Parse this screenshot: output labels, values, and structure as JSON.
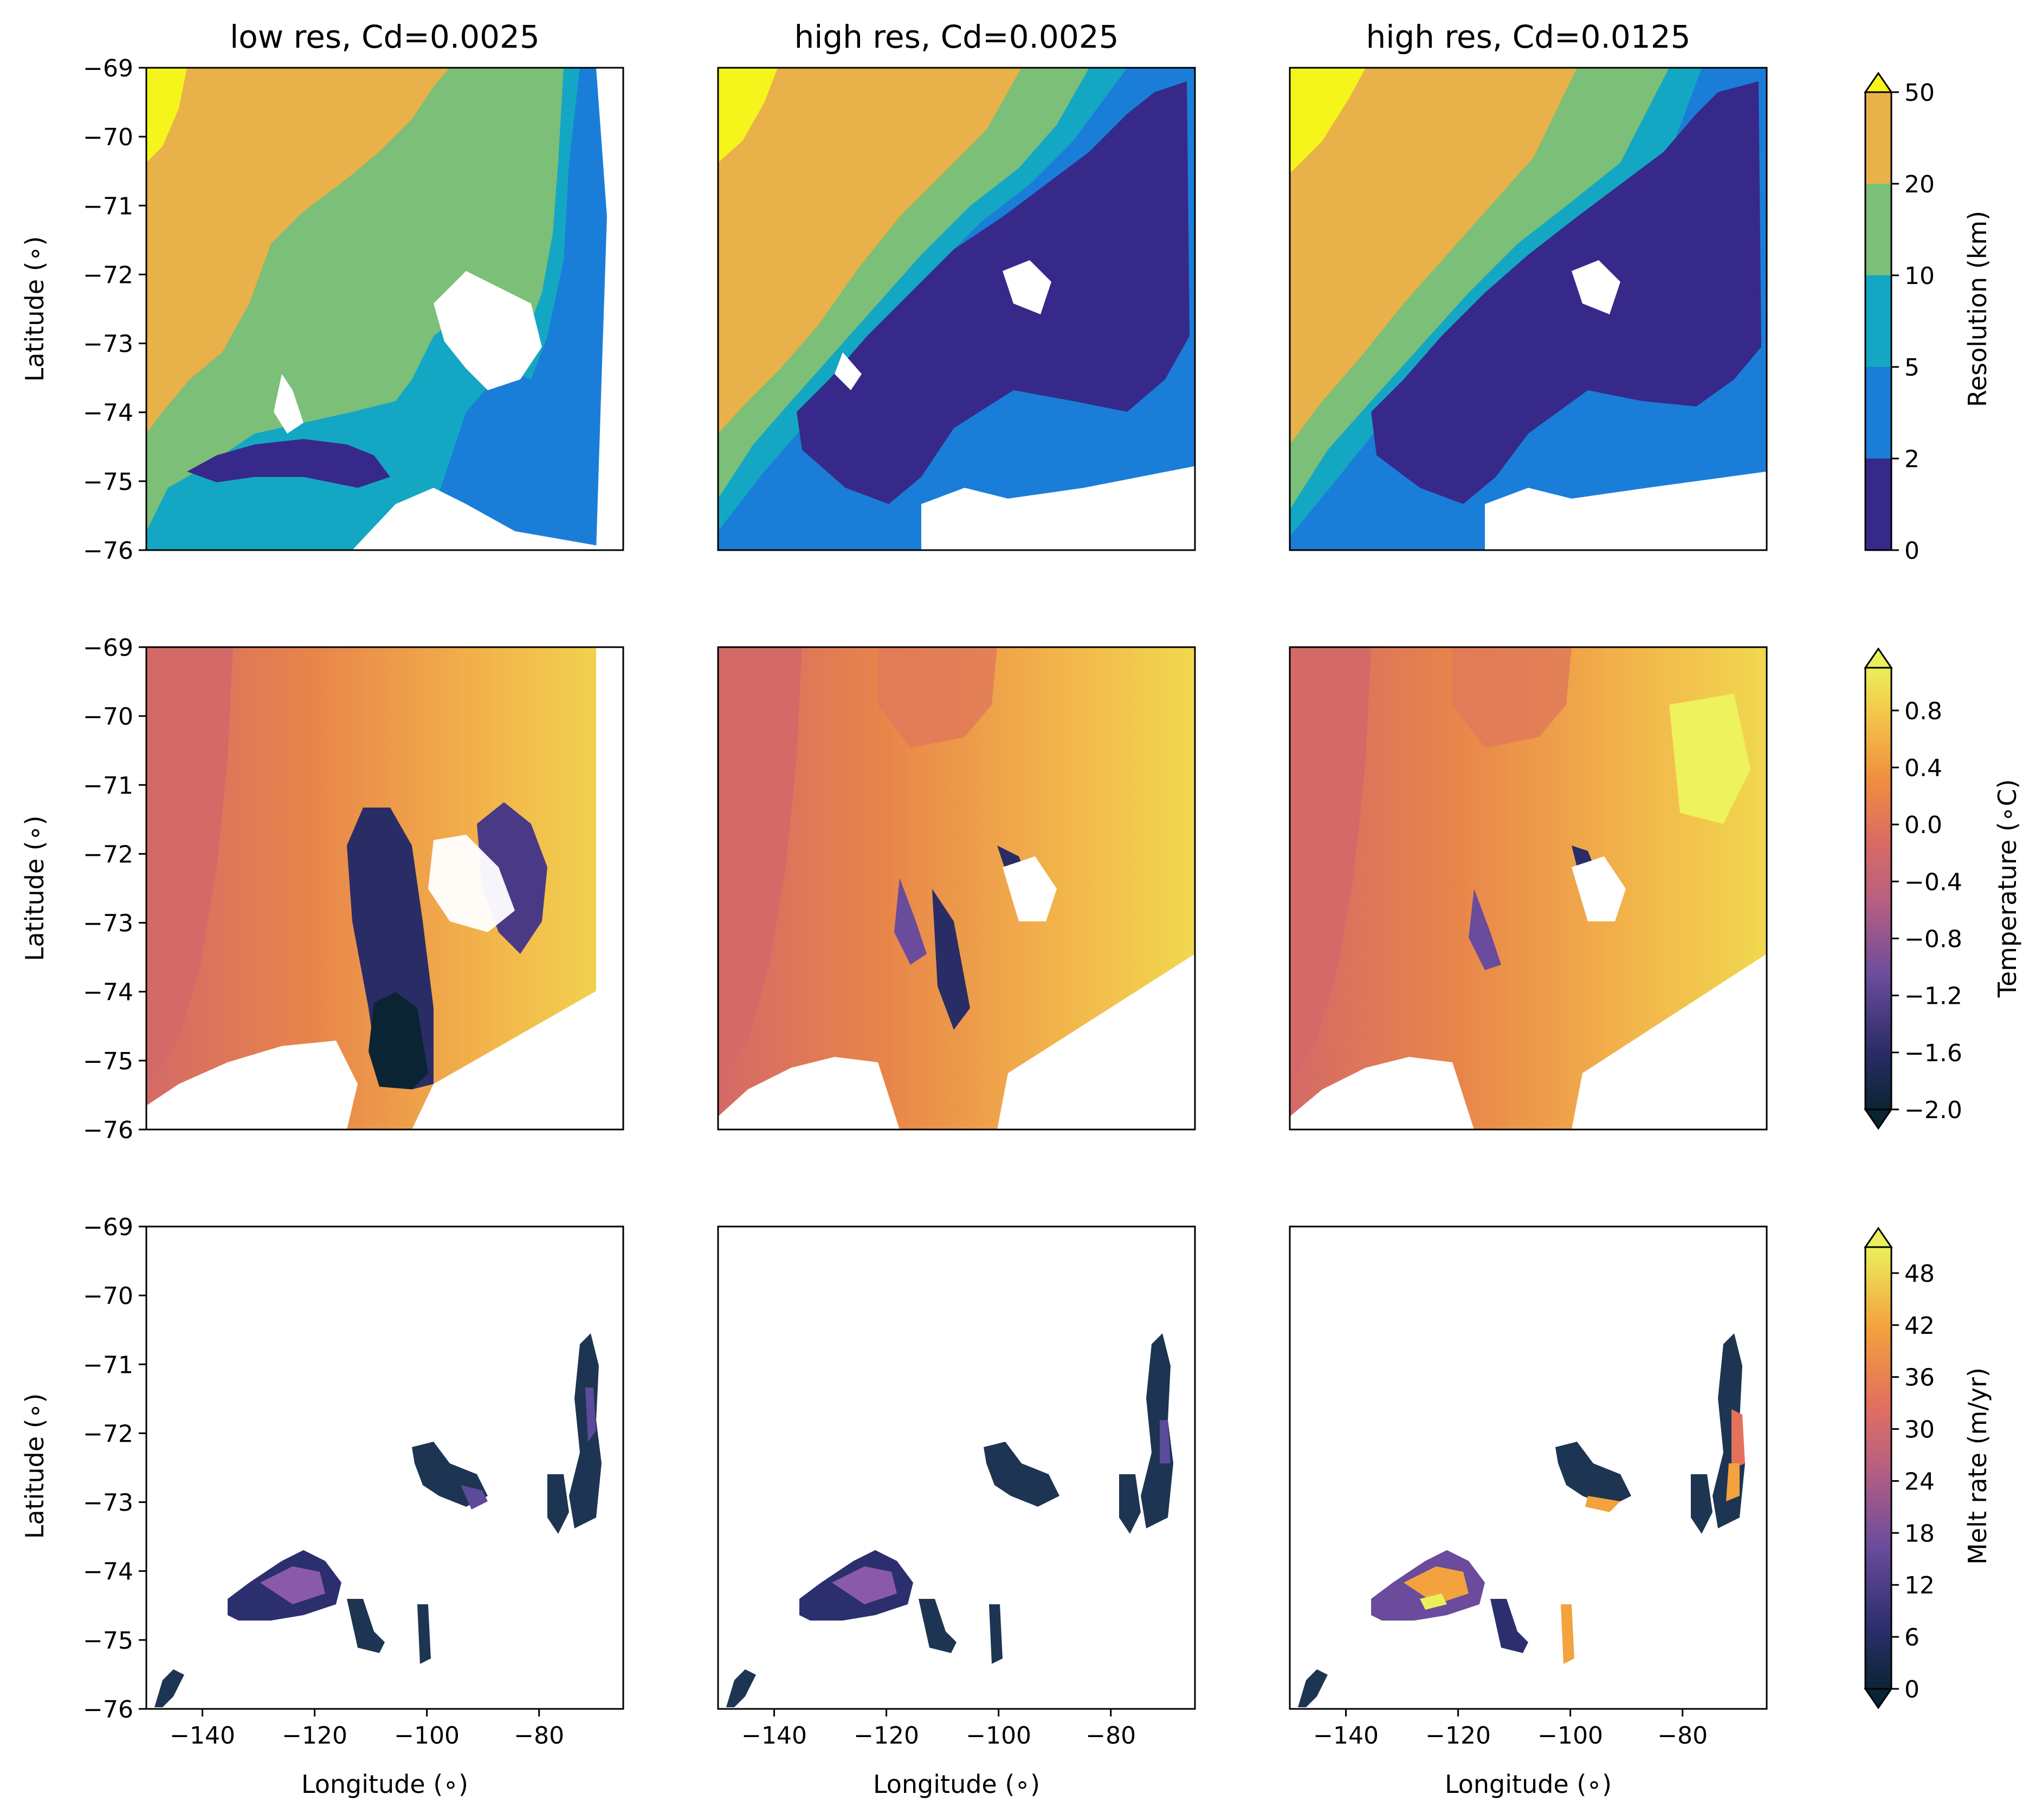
{
  "chart_data": {
    "type": "heatmap",
    "layout": {
      "rows": 3,
      "cols": 3
    },
    "column_titles": [
      "low res, Cd=0.0025",
      "high res, Cd=0.0025",
      "high res, Cd=0.0125"
    ],
    "xlabel": "Longitude (∘)",
    "ylabel": "Latitude (∘)",
    "xlim": [
      -150,
      -65
    ],
    "ylim": [
      -76,
      -69
    ],
    "xticks": [
      -140,
      -120,
      -100,
      -80
    ],
    "yticks": [
      -69,
      -70,
      -71,
      -72,
      -73,
      -74,
      -75,
      -76
    ],
    "colorbars": [
      {
        "label": "Resolution (km)",
        "ticks": [
          "50",
          "20",
          "10",
          "5",
          "2",
          "0"
        ],
        "levels": [
          0,
          2,
          5,
          10,
          20,
          50
        ],
        "colors": [
          "#37298a",
          "#1a7ed8",
          "#14a7c3",
          "#7bbf78",
          "#e8b14a"
        ],
        "extend_color": "#f5f51c",
        "extend": "max"
      },
      {
        "label": "Temperature (∘C)",
        "ticks": [
          "0.8",
          "0.4",
          "0.0",
          "−0.4",
          "−0.8",
          "−1.2",
          "−1.6",
          "−2.0"
        ],
        "range": [
          -2.0,
          1.1
        ],
        "extend": "both"
      },
      {
        "label": "Melt rate (m/yr)",
        "ticks": [
          "48",
          "42",
          "36",
          "30",
          "24",
          "18",
          "12",
          "6",
          "0"
        ],
        "range": [
          0,
          51
        ],
        "extend": "both"
      }
    ]
  }
}
